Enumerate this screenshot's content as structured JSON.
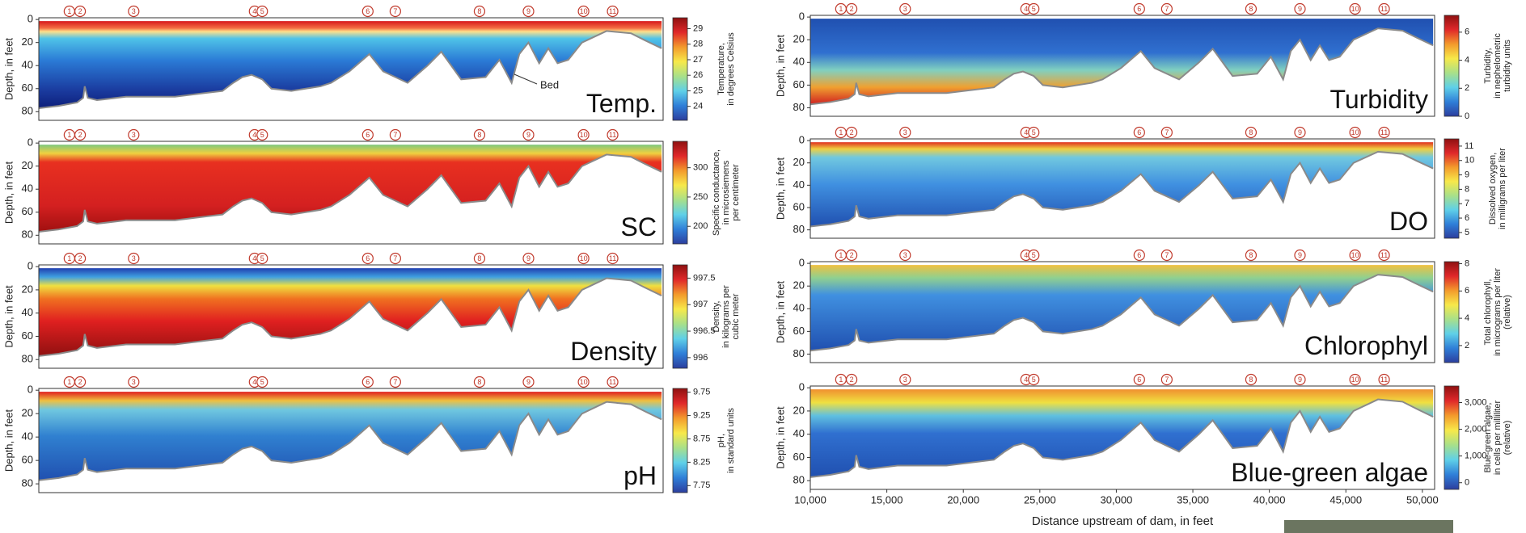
{
  "sites": {
    "labels": [
      "1",
      "2",
      "3",
      "4",
      "5",
      "6",
      "7",
      "8",
      "9",
      "10",
      "11"
    ],
    "x": [
      12000,
      12700,
      16200,
      24100,
      24600,
      31500,
      33300,
      38800,
      42000,
      45600,
      47500
    ]
  },
  "bed": {
    "x": [
      10000,
      11300,
      12500,
      12900,
      13000,
      13200,
      13800,
      15700,
      18900,
      22000,
      22700,
      23300,
      23900,
      24600,
      25200,
      26500,
      28400,
      29100,
      30300,
      31600,
      32500,
      34100,
      35400,
      36300,
      37600,
      39200,
      40100,
      40900,
      41400,
      42000,
      42700,
      43300,
      43900,
      44600,
      45500,
      47100,
      48700,
      49600,
      50700
    ],
    "depth": [
      77,
      75,
      72,
      68,
      58,
      68,
      70,
      67,
      67,
      62,
      55,
      50,
      48,
      52,
      60,
      62,
      58,
      55,
      45,
      30,
      45,
      55,
      40,
      28,
      52,
      50,
      35,
      55,
      30,
      20,
      38,
      25,
      38,
      35,
      20,
      10,
      12,
      18,
      25
    ]
  },
  "bed_label": "Bed",
  "colormap": [
    "#2c3e9e",
    "#2f7fd8",
    "#5fd0e8",
    "#a8e08a",
    "#f7e94a",
    "#f39a2c",
    "#e0282a",
    "#8e1111"
  ],
  "chart_data": [
    {
      "type": "contour",
      "title": "Temp.",
      "ylabel": "Depth, in feet",
      "xlim": [
        10000,
        50800
      ],
      "ylim": [
        -1.5,
        87.5
      ],
      "yticks": [
        0,
        20,
        40,
        60,
        80
      ],
      "colorbar_label": [
        "Temperature,",
        "in degrees Celsius"
      ],
      "clim": [
        23.1,
        29.7
      ],
      "cticks": [
        24,
        25,
        26,
        27,
        28,
        29
      ]
    },
    {
      "type": "contour",
      "title": "SC",
      "ylabel": "Depth, in feet",
      "xlim": [
        10000,
        50800
      ],
      "ylim": [
        -1.5,
        87.5
      ],
      "yticks": [
        0,
        20,
        40,
        60,
        80
      ],
      "colorbar_label": [
        "Specific conductance,",
        "in microsiemens",
        "per centimeter"
      ],
      "clim": [
        170,
        345
      ],
      "cticks": [
        200,
        250,
        300
      ]
    },
    {
      "type": "contour",
      "title": "Density",
      "ylabel": "Depth, in feet",
      "xlim": [
        10000,
        50800
      ],
      "ylim": [
        -1.5,
        87.5
      ],
      "yticks": [
        0,
        20,
        40,
        60,
        80
      ],
      "colorbar_label": [
        "Density,",
        "in kilograms per",
        "cubic meter"
      ],
      "clim": [
        995.8,
        997.75
      ],
      "cticks": [
        996,
        996.5,
        997,
        997.5
      ]
    },
    {
      "type": "contour",
      "title": "pH",
      "ylabel": "Depth, in feet",
      "xlim": [
        10000,
        50800
      ],
      "ylim": [
        -1.5,
        87.5
      ],
      "yticks": [
        0,
        20,
        40,
        60,
        80
      ],
      "colorbar_label": [
        "pH,",
        "in standard units"
      ],
      "clim": [
        7.6,
        9.83
      ],
      "cticks": [
        7.75,
        8.25,
        8.75,
        9.25,
        9.75
      ]
    },
    {
      "type": "contour",
      "title": "Turbidity",
      "ylabel": "Depth, in feet",
      "xlim": [
        10000,
        50800
      ],
      "ylim": [
        -1.5,
        87.5
      ],
      "yticks": [
        0,
        20,
        40,
        60,
        80
      ],
      "colorbar_label": [
        "Turbidity,",
        "in nephelometric",
        "turbidity units"
      ],
      "clim": [
        0,
        7.2
      ],
      "cticks": [
        0,
        2,
        4,
        6
      ]
    },
    {
      "type": "contour",
      "title": "DO",
      "ylabel": "Depth, in feet",
      "xlim": [
        10000,
        50800
      ],
      "ylim": [
        -1.5,
        87.5
      ],
      "yticks": [
        0,
        20,
        40,
        60,
        80
      ],
      "colorbar_label": [
        "Dissolved oxygen,",
        "in milligrams per liter"
      ],
      "clim": [
        4.6,
        11.5
      ],
      "cticks": [
        5,
        6,
        7,
        8,
        9,
        10,
        11
      ]
    },
    {
      "type": "contour",
      "title": "Chlorophyl",
      "ylabel": "Depth, in feet",
      "xlim": [
        10000,
        50800
      ],
      "ylim": [
        -1.5,
        87.5
      ],
      "yticks": [
        0,
        20,
        40,
        60,
        80
      ],
      "colorbar_label": [
        "Total chlorophyll,",
        "in micrograms per liter",
        "(relative)"
      ],
      "clim": [
        0.75,
        8.15
      ],
      "cticks": [
        2,
        4,
        6,
        8
      ]
    },
    {
      "type": "contour",
      "title": "Blue-green algae",
      "ylabel": "Depth, in feet",
      "xlim": [
        10000,
        50800
      ],
      "ylim": [
        -1.5,
        87.5
      ],
      "yticks": [
        0,
        20,
        40,
        60,
        80
      ],
      "colorbar_label": [
        "Blue-green algae,",
        "in cells per milliliter",
        "(relative)"
      ],
      "clim": [
        -250,
        3620
      ],
      "cticks": [
        0,
        {
          "value": 1000,
          "label": "1,000"
        },
        {
          "value": 2000,
          "label": "2,000"
        },
        {
          "value": 3000,
          "label": "3,000"
        }
      ],
      "xlabel": "Distance upstream of dam, in feet",
      "xticks": [
        {
          "value": 10000,
          "label": "10,000"
        },
        {
          "value": 15000,
          "label": "15,000"
        },
        {
          "value": 20000,
          "label": "20,000"
        },
        {
          "value": 25000,
          "label": "25,000"
        },
        {
          "value": 30000,
          "label": "30,000"
        },
        {
          "value": 35000,
          "label": "35,000"
        },
        {
          "value": 40000,
          "label": "40,000"
        },
        {
          "value": 45000,
          "label": "45,000"
        },
        {
          "value": 50000,
          "label": "50,000"
        }
      ]
    }
  ]
}
